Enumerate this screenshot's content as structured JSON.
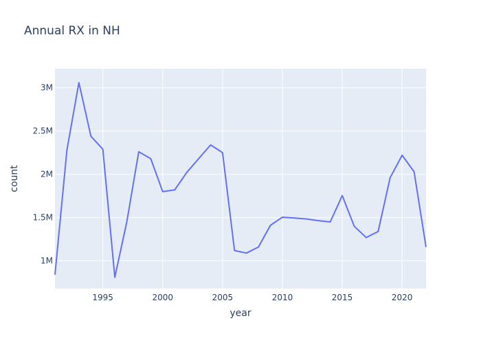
{
  "chart_data": {
    "type": "line",
    "title": "Annual RX in NH",
    "xlabel": "year",
    "ylabel": "count",
    "xlim": [
      1991,
      2022
    ],
    "ylim": [
      680000,
      3220000
    ],
    "grid": true,
    "plot_background": "#e5ecf6",
    "line_color": "#636efa",
    "x_ticks": [
      {
        "value": 1995,
        "label": "1995"
      },
      {
        "value": 2000,
        "label": "2000"
      },
      {
        "value": 2005,
        "label": "2005"
      },
      {
        "value": 2010,
        "label": "2010"
      },
      {
        "value": 2015,
        "label": "2015"
      },
      {
        "value": 2020,
        "label": "2020"
      }
    ],
    "y_ticks": [
      {
        "value": 1000000,
        "label": "1M"
      },
      {
        "value": 1500000,
        "label": "1.5M"
      },
      {
        "value": 2000000,
        "label": "2M"
      },
      {
        "value": 2500000,
        "label": "2.5M"
      },
      {
        "value": 3000000,
        "label": "3M"
      }
    ],
    "series": [
      {
        "x": [
          1991,
          1992,
          1993,
          1994,
          1995,
          1996,
          1997,
          1998,
          1999,
          2000,
          2001,
          2002,
          2003,
          2004,
          2005,
          2006,
          2007,
          2008,
          2009,
          2010,
          2011,
          2012,
          2013,
          2014,
          2015,
          2016,
          2017,
          2018,
          2019,
          2020,
          2021,
          2022
        ],
        "values": [
          840000,
          2280000,
          3060000,
          2440000,
          2290000,
          810000,
          1450000,
          2260000,
          2180000,
          1800000,
          1820000,
          2020000,
          2180000,
          2340000,
          2250000,
          1120000,
          1090000,
          1160000,
          1410000,
          1505000,
          1495000,
          1485000,
          1465000,
          1450000,
          1755000,
          1400000,
          1270000,
          1340000,
          1960000,
          2220000,
          2030000,
          1160000
        ]
      }
    ]
  }
}
